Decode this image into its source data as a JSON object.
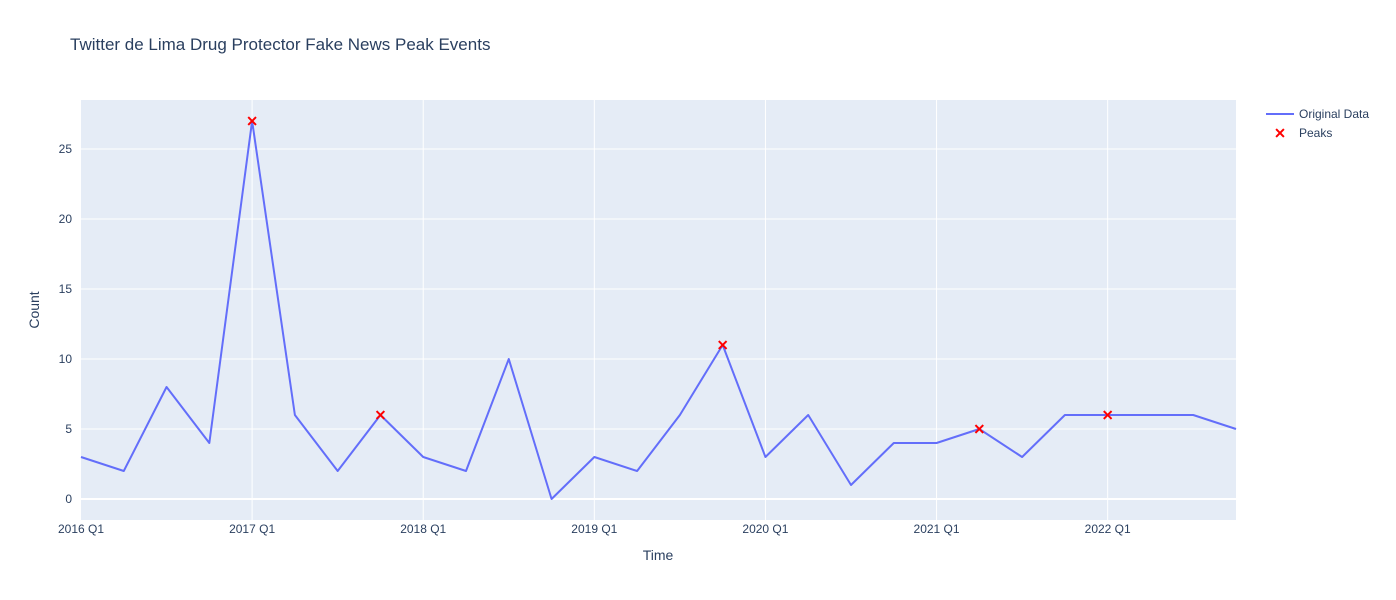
{
  "chart_data": {
    "type": "line",
    "title": "Twitter de Lima Drug Protector Fake News Peak Events",
    "xlabel": "Time",
    "ylabel": "Count",
    "x": [
      "2016 Q1",
      "2016 Q2",
      "2016 Q3",
      "2016 Q4",
      "2017 Q1",
      "2017 Q2",
      "2017 Q3",
      "2017 Q4",
      "2018 Q1",
      "2018 Q2",
      "2018 Q3",
      "2018 Q4",
      "2019 Q1",
      "2019 Q2",
      "2019 Q3",
      "2019 Q4",
      "2020 Q1",
      "2020 Q2",
      "2020 Q3",
      "2020 Q4",
      "2021 Q1",
      "2021 Q2",
      "2021 Q3",
      "2021 Q4",
      "2022 Q1",
      "2022 Q2",
      "2022 Q3",
      "2022 Q4"
    ],
    "series": [
      {
        "name": "Original Data",
        "mode": "line",
        "color": "#636efa",
        "values": [
          3,
          2,
          8,
          4,
          27,
          6,
          2,
          6,
          3,
          2,
          10,
          0,
          3,
          2,
          6,
          11,
          3,
          6,
          1,
          4,
          4,
          5,
          3,
          6,
          6,
          6,
          6,
          5
        ]
      },
      {
        "name": "Peaks",
        "mode": "markers",
        "marker": "x",
        "color": "#ff0000",
        "points": [
          {
            "x": "2017 Q1",
            "y": 27
          },
          {
            "x": "2017 Q4",
            "y": 6
          },
          {
            "x": "2019 Q4",
            "y": 11
          },
          {
            "x": "2021 Q2",
            "y": 5
          },
          {
            "x": "2022 Q1",
            "y": 6
          }
        ]
      }
    ],
    "xticks": [
      "2016 Q1",
      "2017 Q1",
      "2018 Q1",
      "2019 Q1",
      "2020 Q1",
      "2021 Q1",
      "2022 Q1"
    ],
    "yticks": [
      0,
      5,
      10,
      15,
      20,
      25
    ],
    "ylim": [
      -1.5,
      28.5
    ],
    "grid": true,
    "legend": "top-right",
    "colors": {
      "plot_bg": "#e5ecf6",
      "grid": "#ffffff",
      "text": "#2a3f5f"
    }
  }
}
